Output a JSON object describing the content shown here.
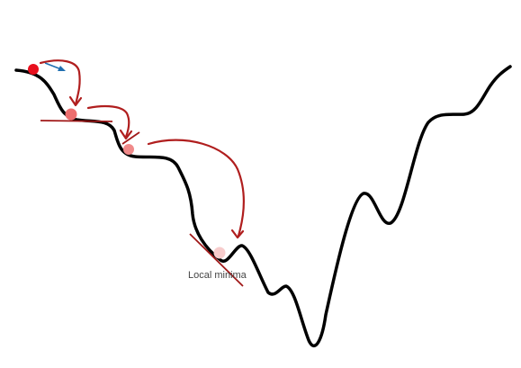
{
  "diagram": {
    "annotation_label": "Local minima"
  },
  "colors": {
    "curve": "#000000",
    "arrow": "#b01e1e",
    "tangent": "#a01818",
    "velocity_arrow": "#1f6fb0",
    "ball_start": "#e8101e",
    "ball_step1": "#ec6e6e",
    "ball_step2": "#f08a8a",
    "ball_end": "#f7cccc",
    "label_text": "#444444"
  }
}
